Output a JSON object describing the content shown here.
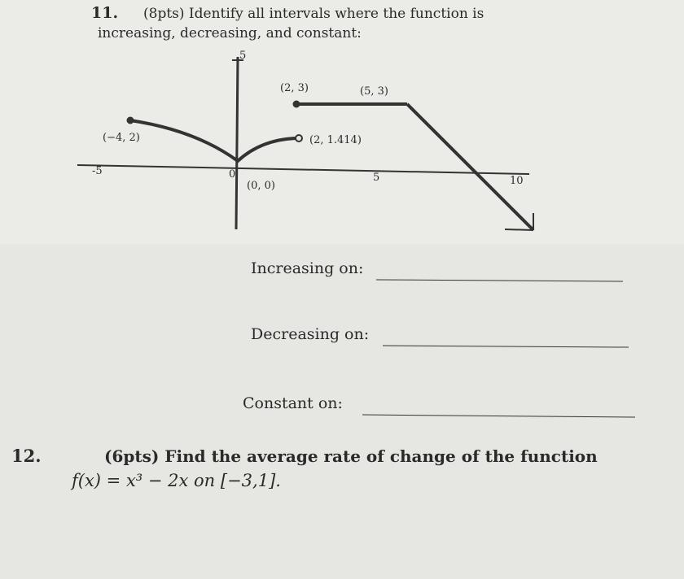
{
  "problems": [
    {
      "number": "11.",
      "prompt_line1": "(8pts) Identify all intervals where the function is",
      "prompt_line2": "increasing, decreasing, and constant:",
      "graph": {
        "y_tick": "5",
        "x_ticks": [
          "-5",
          "0",
          "5",
          "10"
        ],
        "point_labels": [
          "(2, 3)",
          "(5, 3)",
          "(−4, 2)",
          "(2, 1.414)",
          "(0, 0)"
        ]
      },
      "answers": [
        "Increasing on:",
        "Decreasing on:",
        "Constant on:"
      ]
    },
    {
      "number": "12.",
      "prompt_line1": "(6pts) Find the average rate of change of the function",
      "prompt_line2": "f(x) = x³ − 2x on [−3,1]."
    }
  ]
}
